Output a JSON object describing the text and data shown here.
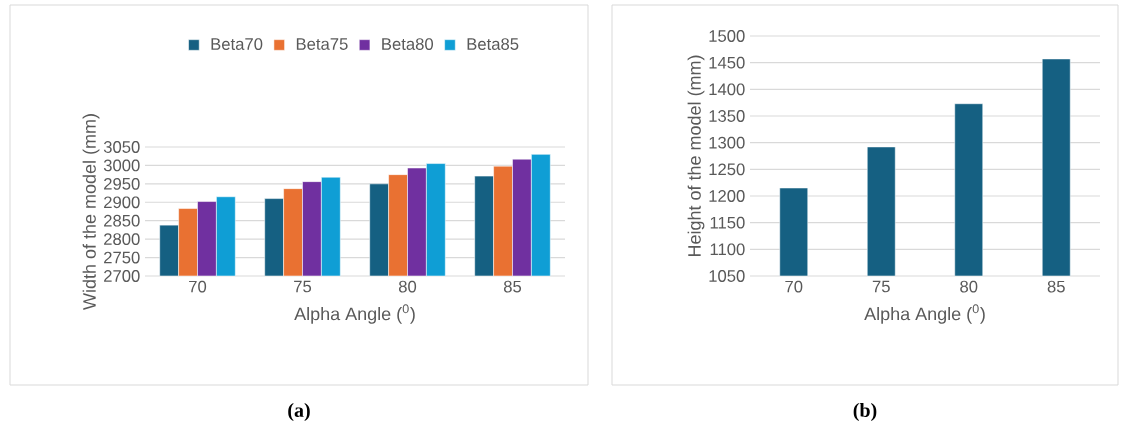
{
  "chart_data": [
    {
      "type": "bar",
      "xlabel": "Alpha Angle ($^{0}$)",
      "ylabel": "Width of the model (mm)",
      "categories": [
        "70",
        "75",
        "80",
        "85"
      ],
      "series": [
        {
          "name": "Beta70",
          "color": "#156082",
          "values": [
            2838,
            2910,
            2950,
            2971
          ]
        },
        {
          "name": "Beta75",
          "color": "#e97132",
          "values": [
            2883,
            2937,
            2975,
            2998
          ]
        },
        {
          "name": "Beta80",
          "color": "#7030a0",
          "values": [
            2902,
            2956,
            2993,
            3017
          ]
        },
        {
          "name": "Beta85",
          "color": "#0f9ed5",
          "values": [
            2915,
            2968,
            3005,
            3030
          ]
        }
      ],
      "ylim": [
        2700,
        3050
      ],
      "yticks": [
        2700,
        2750,
        2800,
        2850,
        2900,
        2950,
        3000,
        3050
      ],
      "grid": "y",
      "legend": "top",
      "annotations": [
        "(a)"
      ]
    },
    {
      "type": "bar",
      "xlabel": "Alpha Angle ($^{0}$)",
      "ylabel": "Height of the model (mm)",
      "categories": [
        "70",
        "75",
        "80",
        "85"
      ],
      "series": [
        {
          "color": "#156082",
          "values": [
            1215,
            1292,
            1373,
            1457
          ]
        }
      ],
      "ylim": [
        1050,
        1500
      ],
      "yticks": [
        1050,
        1100,
        1150,
        1200,
        1250,
        1300,
        1350,
        1400,
        1450,
        1500
      ],
      "grid": "y",
      "annotations": [
        "(b)"
      ]
    }
  ]
}
